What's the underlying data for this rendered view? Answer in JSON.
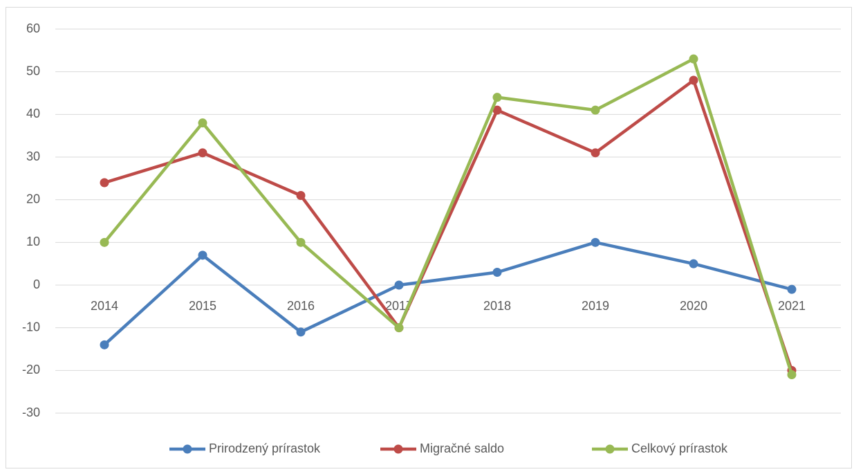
{
  "chart_data": {
    "type": "line",
    "categories": [
      "2014",
      "2015",
      "2016",
      "2017",
      "2018",
      "2019",
      "2020",
      "2021"
    ],
    "series": [
      {
        "name": "Prirodzený prírastok",
        "color": "#4a7ebb",
        "values": [
          -14,
          7,
          -11,
          0,
          3,
          10,
          5,
          -1
        ]
      },
      {
        "name": "Migračné saldo",
        "color": "#be4b48",
        "values": [
          24,
          31,
          21,
          -10,
          41,
          31,
          48,
          -20
        ]
      },
      {
        "name": "Celkový prírastok",
        "color": "#98b954",
        "values": [
          10,
          38,
          10,
          -10,
          44,
          41,
          53,
          -21
        ]
      }
    ],
    "ylim": [
      -30,
      60
    ],
    "yticks": [
      -30,
      -20,
      -10,
      0,
      10,
      20,
      30,
      40,
      50,
      60
    ],
    "grid": true,
    "legend": "bottom"
  }
}
